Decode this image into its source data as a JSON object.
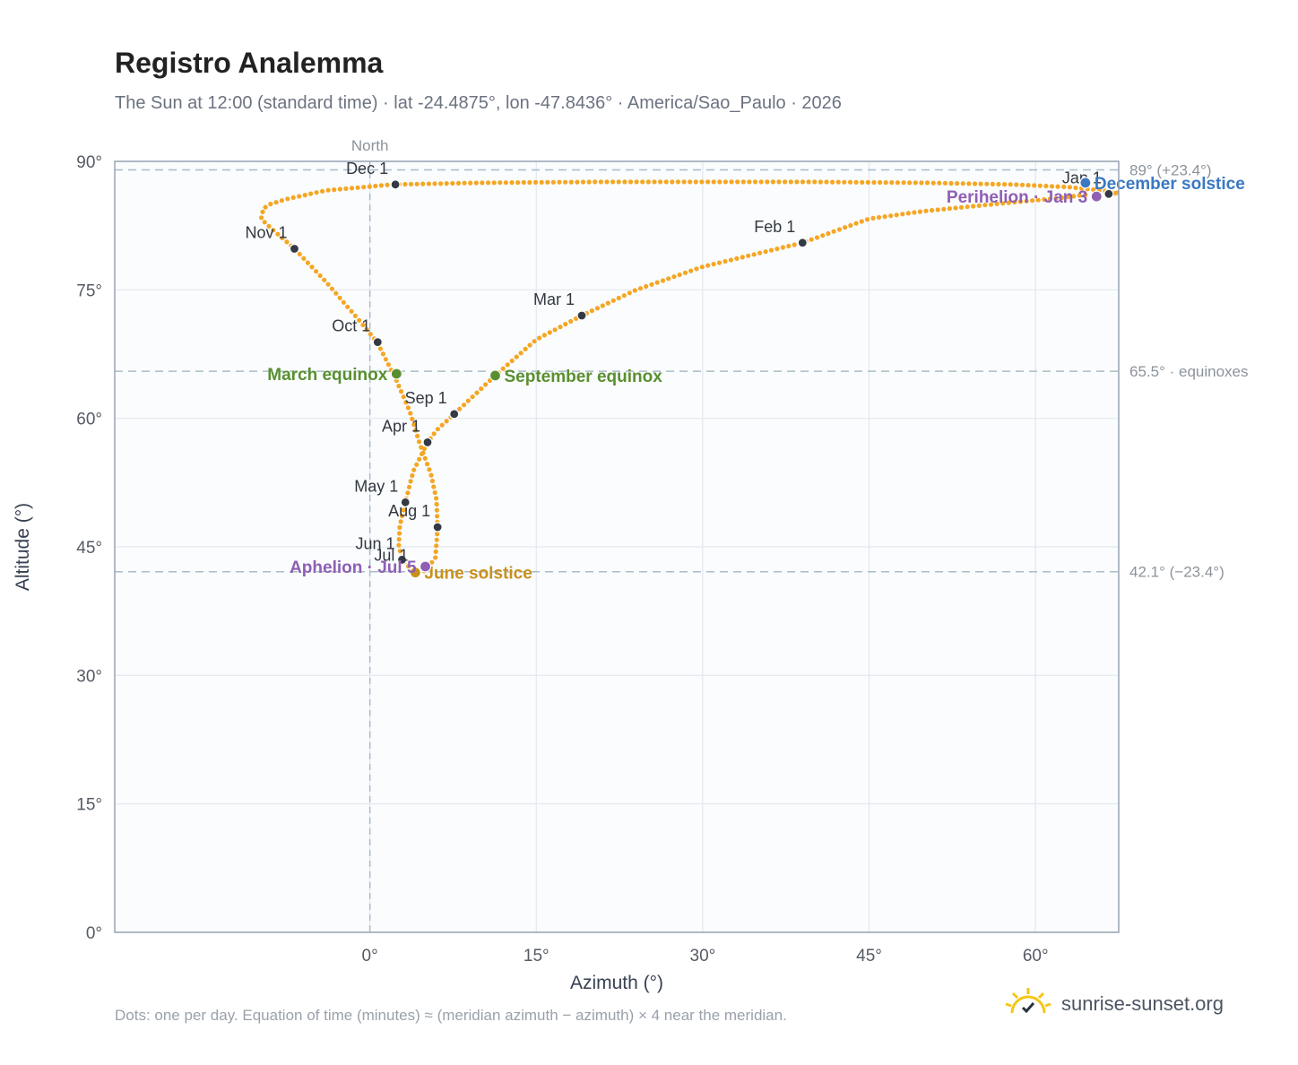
{
  "header": {
    "title": "Registro Analemma",
    "subtitle": "The Sun at 12:00 (standard time) · lat -24.4875°, lon -47.8436° · America/Sao_Paulo · 2026"
  },
  "footer": {
    "note": "Dots: one per day. Equation of time (minutes) ≈ (meridian azimuth − azimuth) × 4 near the meridian.",
    "brand": "sunrise-sunset.org"
  },
  "chart_data": {
    "type": "scatter",
    "xlabel": "Azimuth (°)",
    "ylabel": "Altitude (°)",
    "xlim": [
      -23,
      67.5
    ],
    "ylim": [
      0,
      90
    ],
    "x_ticks": [
      {
        "v": 0,
        "label": "0°"
      },
      {
        "v": 15,
        "label": "15°"
      },
      {
        "v": 30,
        "label": "30°"
      },
      {
        "v": 45,
        "label": "45°"
      },
      {
        "v": 60,
        "label": "60°"
      }
    ],
    "y_ticks": [
      {
        "v": 0,
        "label": "0°"
      },
      {
        "v": 15,
        "label": "15°"
      },
      {
        "v": 30,
        "label": "30°"
      },
      {
        "v": 45,
        "label": "45°"
      },
      {
        "v": 60,
        "label": "60°"
      },
      {
        "v": 75,
        "label": "75°"
      },
      {
        "v": 90,
        "label": "90°"
      }
    ],
    "grid": true,
    "meridian": {
      "x": 0,
      "label": "North"
    },
    "ref_lines": [
      {
        "y": 89,
        "label": "89° (+23.4°)"
      },
      {
        "y": 65.5,
        "label": "65.5° · equinoxes"
      },
      {
        "y": 42.1,
        "label": "42.1° (−23.4°)"
      }
    ],
    "path_color": "#f5a623",
    "path_points": [
      [
        64.5,
        86.1
      ],
      [
        62.0,
        85.7
      ],
      [
        57.0,
        85.1
      ],
      [
        50.0,
        84.2
      ],
      [
        45.0,
        83.3
      ],
      [
        39.0,
        80.5
      ],
      [
        30.0,
        77.7
      ],
      [
        24.0,
        75.0
      ],
      [
        19.1,
        72.0
      ],
      [
        15.0,
        69.2
      ],
      [
        11.3,
        65.0
      ],
      [
        8.0,
        61.0
      ],
      [
        7.6,
        60.5
      ],
      [
        6.0,
        58.6
      ],
      [
        5.2,
        57.2
      ],
      [
        3.9,
        53.8
      ],
      [
        3.2,
        50.2
      ],
      [
        2.7,
        47.5
      ],
      [
        2.6,
        45.2
      ],
      [
        2.9,
        43.6
      ],
      [
        3.2,
        43.0
      ],
      [
        4.1,
        42.1
      ],
      [
        5.0,
        42.2
      ],
      [
        5.9,
        43.7
      ],
      [
        6.1,
        47.2
      ],
      [
        6.0,
        50.5
      ],
      [
        5.5,
        53.5
      ],
      [
        4.5,
        57.0
      ],
      [
        3.6,
        60.8
      ],
      [
        2.3,
        64.7
      ],
      [
        1.0,
        68.0
      ],
      [
        0.7,
        68.8
      ],
      [
        -1.0,
        71.5
      ],
      [
        -4.0,
        76.0
      ],
      [
        -6.8,
        79.8
      ],
      [
        -9.0,
        82.3
      ],
      [
        -9.8,
        83.3
      ],
      [
        -9.6,
        84.5
      ],
      [
        -9.0,
        85.0
      ],
      [
        -7.5,
        85.6
      ],
      [
        -4.0,
        86.6
      ],
      [
        2.0,
        87.3
      ],
      [
        10.0,
        87.5
      ],
      [
        20.0,
        87.6
      ],
      [
        30.0,
        87.6
      ],
      [
        40.0,
        87.6
      ],
      [
        50.0,
        87.5
      ],
      [
        58.0,
        87.3
      ],
      [
        63.0,
        87.0
      ],
      [
        66.0,
        86.6
      ],
      [
        67.5,
        86.3
      ],
      [
        66.6,
        86.2
      ]
    ],
    "months": [
      {
        "label": "Jan 1",
        "x": 66.6,
        "y": 86.2
      },
      {
        "label": "Feb 1",
        "x": 39.0,
        "y": 80.5
      },
      {
        "label": "Mar 1",
        "x": 19.1,
        "y": 72.0
      },
      {
        "label": "Apr 1",
        "x": 5.2,
        "y": 57.2
      },
      {
        "label": "May 1",
        "x": 3.2,
        "y": 50.2
      },
      {
        "label": "Jun 1",
        "x": 2.9,
        "y": 43.5
      },
      {
        "label": "Jul 1",
        "x": 4.1,
        "y": 42.1
      },
      {
        "label": "Aug 1",
        "x": 6.1,
        "y": 47.3
      },
      {
        "label": "Sep 1",
        "x": 7.6,
        "y": 60.5
      },
      {
        "label": "Oct 1",
        "x": 0.7,
        "y": 68.9
      },
      {
        "label": "Nov 1",
        "x": -6.8,
        "y": 79.8
      },
      {
        "label": "Dec 1",
        "x": 2.3,
        "y": 87.3
      }
    ],
    "events": [
      {
        "label": "December solstice",
        "x": 64.5,
        "y": 87.5,
        "color": "#3a78c2"
      },
      {
        "label": "Perihelion · Jan 3",
        "x": 65.5,
        "y": 85.9,
        "color": "#8e5fb3"
      },
      {
        "label": "March equinox",
        "x": 2.4,
        "y": 65.2,
        "color": "#5a8f2f"
      },
      {
        "label": "September equinox",
        "x": 11.3,
        "y": 65.0,
        "color": "#5a8f2f"
      },
      {
        "label": "June solstice",
        "x": 4.1,
        "y": 42.0,
        "color": "#c8901a"
      },
      {
        "label": "Aphelion · Jul 5",
        "x": 5.0,
        "y": 42.7,
        "color": "#8e5fb3"
      }
    ]
  }
}
